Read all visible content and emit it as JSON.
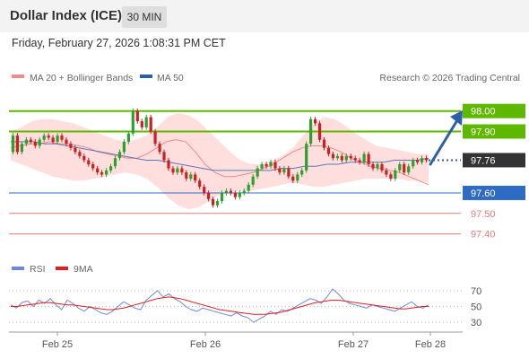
{
  "header": {
    "title": "Dollar Index (ICE)",
    "interval": "30 MIN"
  },
  "timestamp": "Friday, February 27, 2026 1:08:31 PM CET",
  "legend": {
    "ma20_label": "MA 20 + Bollinger Bands",
    "ma50_label": "MA 50",
    "copyright": "Research © 2026 Trading Central",
    "rsi_label": "RSI",
    "rsi_ma_label": "9MA"
  },
  "colors": {
    "up": "#2ea02e",
    "down": "#cc1f1f",
    "band_fill": "#ffdede",
    "ma20": "#f28a8a",
    "ma50": "#5a78b8",
    "resistance": "#5fb800",
    "support": "#2e6cc4",
    "target": "#e87c7c",
    "last": "#333333",
    "arrow": "#2d5ea8",
    "rsi": "#6b8be0",
    "rsi_ma": "#e02020"
  },
  "chart_data": [
    {
      "type": "candlestick",
      "y_range": [
        97.35,
        98.06
      ],
      "x_labels": [
        "Feb 25",
        "Feb 26",
        "Feb 27",
        "Feb 28"
      ],
      "levels": [
        {
          "value": 98.0,
          "label": "98.00",
          "kind": "resistance"
        },
        {
          "value": 97.9,
          "label": "97.90",
          "kind": "resistance"
        },
        {
          "value": 97.76,
          "label": "97.76",
          "kind": "last"
        },
        {
          "value": 97.6,
          "label": "97.60",
          "kind": "support"
        },
        {
          "value": 97.5,
          "label": "97.50",
          "kind": "target"
        },
        {
          "value": 97.4,
          "label": "97.40",
          "kind": "target"
        }
      ],
      "projection": {
        "from": 97.74,
        "to": 97.99
      },
      "price": [
        97.88,
        97.8,
        97.84,
        97.86,
        97.85,
        97.83,
        97.86,
        97.88,
        97.87,
        97.85,
        97.88,
        97.86,
        97.84,
        97.82,
        97.8,
        97.78,
        97.76,
        97.74,
        97.72,
        97.7,
        97.69,
        97.71,
        97.73,
        97.77,
        97.8,
        97.85,
        97.89,
        98.0,
        97.95,
        97.92,
        97.97,
        97.9,
        97.84,
        97.8,
        97.76,
        97.72,
        97.7,
        97.72,
        97.7,
        97.67,
        97.69,
        97.66,
        97.63,
        97.6,
        97.57,
        97.54,
        97.56,
        97.6,
        97.61,
        97.6,
        97.58,
        97.6,
        97.61,
        97.64,
        97.68,
        97.72,
        97.74,
        97.73,
        97.75,
        97.72,
        97.7,
        97.72,
        97.68,
        97.66,
        97.69,
        97.71,
        97.84,
        97.96,
        97.94,
        97.86,
        97.82,
        97.79,
        97.77,
        97.78,
        97.76,
        97.78,
        97.77,
        97.76,
        97.75,
        97.79,
        97.74,
        97.72,
        97.74,
        97.71,
        97.69,
        97.67,
        97.71,
        97.74,
        97.7,
        97.73,
        97.76,
        97.75,
        97.77,
        97.76
      ],
      "ma20": [
        97.82,
        97.83,
        97.84,
        97.84,
        97.85,
        97.84,
        97.84,
        97.83,
        97.82,
        97.8,
        97.79,
        97.78,
        97.77,
        97.77,
        97.79,
        97.82,
        97.85,
        97.86,
        97.85,
        97.8,
        97.74,
        97.7,
        97.68,
        97.68,
        97.69,
        97.7,
        97.72,
        97.74,
        97.77,
        97.8,
        97.82,
        97.83,
        97.83,
        97.82,
        97.8,
        97.77,
        97.75,
        97.73,
        97.72,
        97.71,
        97.7,
        97.68,
        97.66,
        97.64
      ],
      "ma50": [
        97.85,
        97.85,
        97.85,
        97.84,
        97.84,
        97.83,
        97.82,
        97.81,
        97.8,
        97.79,
        97.78,
        97.77,
        97.76,
        97.76,
        97.75,
        97.74,
        97.73,
        97.72,
        97.71,
        97.71,
        97.71,
        97.71,
        97.71,
        97.71,
        97.72,
        97.72,
        97.73,
        97.73,
        97.74,
        97.74,
        97.75,
        97.75,
        97.75,
        97.75,
        97.76,
        97.76,
        97.76,
        97.77
      ],
      "band_upper": [
        97.9,
        97.92,
        97.95,
        97.96,
        97.96,
        97.95,
        97.94,
        97.92,
        97.9,
        97.88,
        97.86,
        97.85,
        97.86,
        97.88,
        97.92,
        97.97,
        97.99,
        97.98,
        97.95,
        97.9,
        97.85,
        97.8,
        97.76,
        97.74,
        97.74,
        97.76,
        97.78,
        97.82,
        97.88,
        97.94,
        97.97,
        97.96,
        97.93,
        97.89,
        97.86,
        97.83,
        97.82,
        97.81,
        97.8,
        97.79,
        97.79
      ],
      "band_lower": [
        97.76,
        97.74,
        97.72,
        97.7,
        97.68,
        97.67,
        97.66,
        97.66,
        97.67,
        97.68,
        97.69,
        97.7,
        97.69,
        97.67,
        97.63,
        97.58,
        97.54,
        97.52,
        97.53,
        97.56,
        97.59,
        97.61,
        97.61,
        97.61,
        97.62,
        97.63,
        97.64,
        97.65,
        97.64,
        97.63,
        97.63,
        97.64,
        97.65,
        97.66,
        97.67,
        97.67,
        97.67,
        97.67,
        97.66,
        97.66,
        97.65
      ]
    },
    {
      "type": "line",
      "name_series": [
        "RSI",
        "9MA"
      ],
      "y_ticks": [
        70,
        50,
        30
      ],
      "y_range": [
        20,
        80
      ],
      "rsi": [
        52,
        48,
        55,
        57,
        50,
        58,
        54,
        60,
        52,
        46,
        58,
        54,
        48,
        44,
        50,
        46,
        42,
        40,
        44,
        50,
        56,
        52,
        48,
        46,
        58,
        64,
        70,
        62,
        66,
        60,
        56,
        50,
        46,
        44,
        48,
        46,
        44,
        42,
        40,
        38,
        42,
        38,
        36,
        30,
        34,
        38,
        44,
        40,
        46,
        44,
        48,
        52,
        56,
        60,
        58,
        54,
        62,
        72,
        66,
        58,
        54,
        52,
        50,
        48,
        52,
        50,
        48,
        46,
        44,
        48,
        52,
        56,
        50,
        48,
        52
      ],
      "rsi_ma": [
        50,
        50,
        51,
        52,
        53,
        54,
        55,
        55,
        54,
        53,
        52,
        52,
        51,
        50,
        49,
        48,
        47,
        46,
        46,
        47,
        48,
        50,
        52,
        54,
        56,
        58,
        60,
        61,
        62,
        61,
        60,
        58,
        56,
        54,
        52,
        50,
        48,
        46,
        45,
        44,
        43,
        42,
        41,
        40,
        40,
        40,
        41,
        42,
        43,
        45,
        47,
        49,
        51,
        53,
        55,
        56,
        57,
        58,
        58,
        57,
        56,
        55,
        54,
        53,
        52,
        51,
        50,
        49,
        48,
        47,
        47,
        48,
        49,
        50,
        50
      ]
    }
  ]
}
